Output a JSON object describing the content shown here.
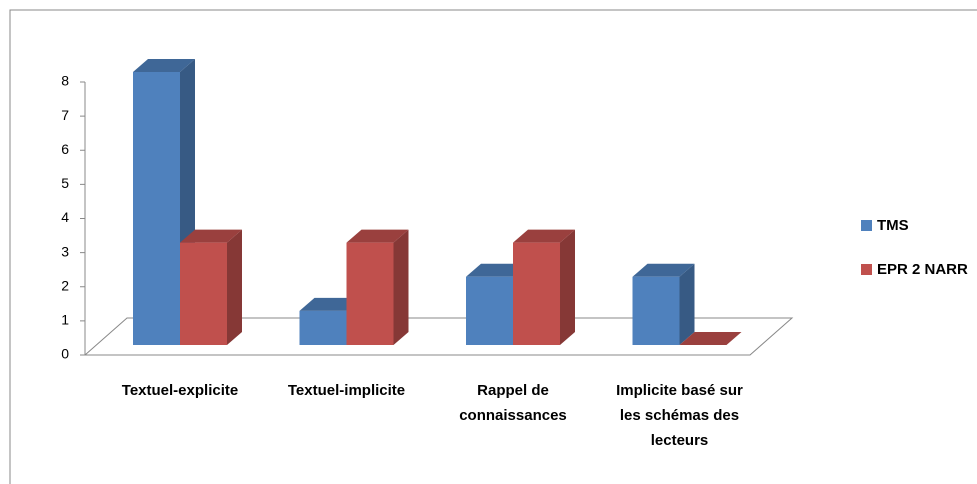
{
  "chart_data": {
    "type": "bar3d",
    "categories": [
      "Textuel-explicite",
      "Textuel-implicite",
      "Rappel de connaissances",
      "Implicite basé sur les schémas des lecteurs"
    ],
    "series": [
      {
        "name": "TMS",
        "color": "#4f81bd",
        "values": [
          8,
          1,
          2,
          2
        ]
      },
      {
        "name": "EPR 2 NARR",
        "color": "#c0504d",
        "values": [
          3,
          3,
          3,
          0
        ]
      }
    ],
    "ylim": [
      0,
      8
    ],
    "yticks": [
      0,
      1,
      2,
      3,
      4,
      5,
      6,
      7,
      8
    ],
    "legend": "right"
  }
}
